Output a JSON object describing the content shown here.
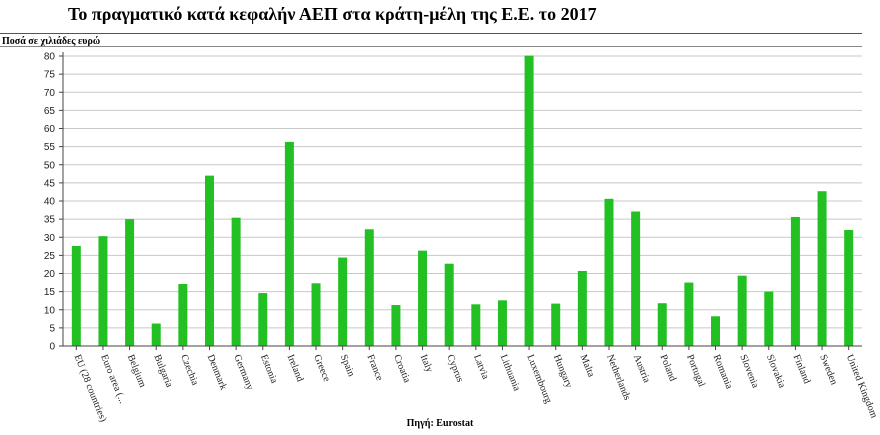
{
  "title": "Το πραγματικό κατά κεφαλήν ΑΕΠ στα κράτη-μέλη της Ε.Ε. το 2017",
  "source": "Πηγή: Eurostat",
  "colors": {
    "bar": "#22c022",
    "grid": "#c8c8c8",
    "axis": "#444444"
  },
  "chart_data": {
    "type": "bar",
    "title": "Το πραγματικό κατά κεφαλήν ΑΕΠ στα κράτη-μέλη της Ε.Ε. το 2017",
    "ylabel": "Ποσά σε χιλιάδες ευρώ",
    "xlabel": "",
    "ylim": [
      0,
      80
    ],
    "yticks": [
      0,
      5,
      10,
      15,
      20,
      25,
      30,
      35,
      40,
      45,
      50,
      55,
      60,
      65,
      70,
      75,
      80
    ],
    "grid": true,
    "legend": "none",
    "categories": [
      "EU (28 countries)",
      "Euro area (...",
      "Belgium",
      "Bulgaria",
      "Czechia",
      "Denmark",
      "Germany",
      "Estonia",
      "Ireland",
      "Greece",
      "Spain",
      "France",
      "Croatia",
      "Italy",
      "Cyprus",
      "Latvia",
      "Lithuania",
      "Luxembourg",
      "Hungary",
      "Malta",
      "Netherlands",
      "Austria",
      "Poland",
      "Portugal",
      "Romania",
      "Slovenia",
      "Slovakia",
      "Finland",
      "Sweden",
      "United Kingdom"
    ],
    "values": [
      27.6,
      30.3,
      35.0,
      6.2,
      17.1,
      47.0,
      35.4,
      14.6,
      56.3,
      17.3,
      24.4,
      32.2,
      11.3,
      26.3,
      22.7,
      11.5,
      12.6,
      80.1,
      11.7,
      20.7,
      40.6,
      37.1,
      11.8,
      17.5,
      8.2,
      19.4,
      15.0,
      35.6,
      42.7,
      32.0
    ]
  }
}
